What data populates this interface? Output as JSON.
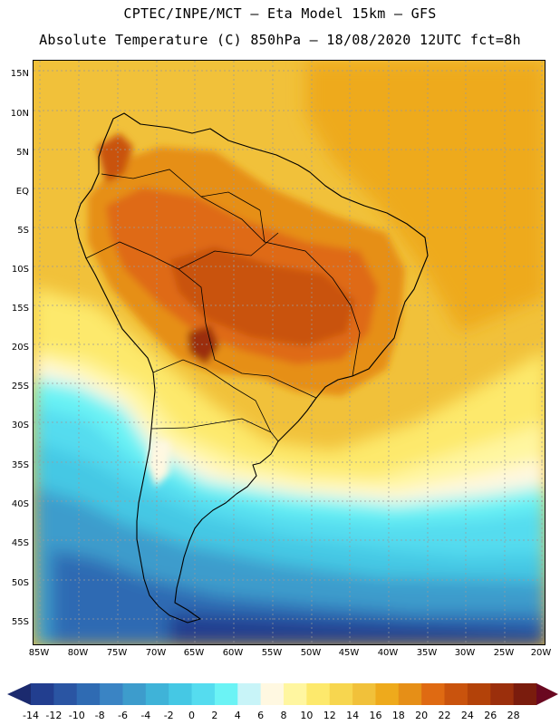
{
  "title": {
    "line1": "CPTEC/INPE/MCT –  Eta Model 15km – GFS",
    "line2": "Absolute Temperature (C) 850hPa – 18/08/2020 12UTC fct=8h"
  },
  "axes": {
    "lat_labels": [
      "15N",
      "10N",
      "5N",
      "EQ",
      "5S",
      "10S",
      "15S",
      "20S",
      "25S",
      "30S",
      "35S",
      "40S",
      "45S",
      "50S",
      "55S"
    ],
    "lon_labels": [
      "85W",
      "80W",
      "75W",
      "70W",
      "65W",
      "60W",
      "55W",
      "50W",
      "45W",
      "40W",
      "35W",
      "30W",
      "25W",
      "20W"
    ]
  },
  "colorbar": {
    "tick_labels": [
      "-14",
      "-12",
      "-10",
      "-8",
      "-6",
      "-4",
      "-2",
      "0",
      "2",
      "4",
      "6",
      "8",
      "10",
      "12",
      "14",
      "16",
      "18",
      "20",
      "22",
      "24",
      "26",
      "28"
    ],
    "colors": [
      "#223e8f",
      "#2a55a3",
      "#2f6bb3",
      "#3a84c4",
      "#3d9ccc",
      "#3fb3d8",
      "#45c8e4",
      "#55dcef",
      "#6bf3f5",
      "#c8f4f8",
      "#fff8e1",
      "#fff6a0",
      "#fde96c",
      "#f7d64f",
      "#f1c13a",
      "#eeaa1c",
      "#e68f17",
      "#df6a12",
      "#c9530d",
      "#b34209",
      "#9b2f0c",
      "#7a1c0d"
    ],
    "low_cap_color": "#1b2a6e",
    "high_cap_color": "#6a0820"
  },
  "map": {
    "land_fill": "none",
    "coast_color": "#000000",
    "grid_color": "#9a9a9a"
  }
}
